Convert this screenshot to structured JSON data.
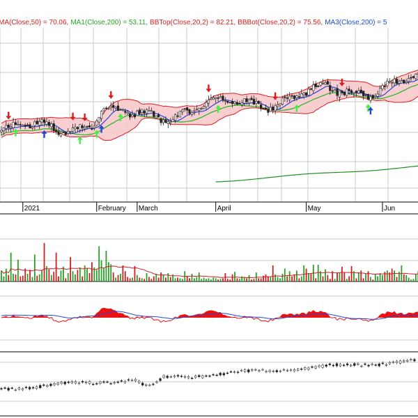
{
  "colors": {
    "up": "#2aa02a",
    "down": "#cc1f1f",
    "ma_short": "#1f49d6",
    "ma_mid": "#22b322",
    "ma_long": "#1f8f1f",
    "band_fill": "#f7c9cc",
    "band_line": "#d81e1e",
    "arrow_sell": "#d81e1e",
    "arrow_buy_green": "#44ee44",
    "arrow_buy_blue": "#2247d6",
    "grid": "#c9c9c9",
    "panel_border": "#000000"
  },
  "legend": [
    {
      "text": "MA(Close,50) = 70.06,",
      "color": "#d81e1e"
    },
    {
      "text": "MA1(Close,200) = 53.11,",
      "color": "#22a822"
    },
    {
      "text": "BBTop(Close,20,2) = 82.21,",
      "color": "#d81e1e"
    },
    {
      "text": "BBBot(Close,20,2) = 75.56,",
      "color": "#d81e1e"
    },
    {
      "text": "MA3(Close,200) = 5",
      "color": "#1f49d6"
    }
  ],
  "x_axis": {
    "labels": [
      "2021",
      "February",
      "March",
      "April",
      "May",
      "Jun"
    ],
    "label_sessions": [
      9,
      40,
      57,
      90,
      128,
      160
    ]
  },
  "chart_data": [
    {
      "type": "candlestick",
      "panel": "price",
      "session_count": 176,
      "close_start": 77.5,
      "close_end": 90.5,
      "ylim": [
        60,
        104
      ],
      "grid": true,
      "series": [
        {
          "name": "Bollinger Bands (20,2)",
          "kind": "band"
        },
        {
          "name": "MA(Close,50)",
          "kind": "line",
          "color": "#1f49d6"
        },
        {
          "name": "MA1(Close,200)",
          "kind": "line",
          "color": "#22b322"
        },
        {
          "name": "MA3(Close,200)",
          "kind": "line",
          "color": "#1f8f1f",
          "start_session": 90
        }
      ],
      "sell_signals": [
        3,
        30,
        35,
        46,
        87,
        115,
        143
      ],
      "buy_signals_green": [
        6,
        33,
        40,
        50,
        91,
        124,
        154
      ],
      "buy_signals_blue": [
        18,
        42,
        155
      ]
    },
    {
      "type": "bar",
      "panel": "volume",
      "ylim": [
        0,
        100
      ],
      "values": [
        17,
        8,
        20,
        10,
        45,
        12,
        11,
        34,
        8,
        9,
        20,
        12,
        18,
        7,
        42,
        9,
        11,
        18,
        60,
        24,
        19,
        10,
        15,
        45,
        8,
        17,
        23,
        5,
        13,
        38,
        16,
        11,
        18,
        21,
        8,
        25,
        20,
        13,
        30,
        22,
        18,
        55,
        33,
        21,
        48,
        30,
        27,
        14,
        6,
        10,
        12,
        25,
        16,
        7,
        5,
        6,
        24,
        10,
        6,
        5,
        4,
        13,
        7,
        4,
        8,
        12,
        6,
        14,
        10,
        6,
        13,
        7,
        11,
        5,
        6,
        5,
        4,
        16,
        8,
        5,
        12,
        5,
        7,
        14,
        4,
        6,
        4,
        5,
        3,
        6,
        5,
        3,
        4,
        5,
        13,
        4,
        3,
        11,
        15,
        5,
        4,
        8,
        6,
        5,
        10,
        3,
        4,
        14,
        5,
        5,
        9,
        11,
        8,
        7,
        25,
        11,
        7,
        5,
        12,
        20,
        8,
        16,
        8,
        11,
        17,
        5,
        8,
        25,
        20,
        13,
        12,
        26,
        5,
        26,
        16,
        8,
        19,
        10,
        4,
        16,
        4,
        14,
        13,
        23,
        14,
        4,
        8,
        24,
        16,
        5,
        14,
        17,
        5,
        12,
        16,
        7,
        3,
        11,
        8,
        13,
        10,
        15,
        17,
        14,
        20,
        17,
        7,
        15,
        25,
        11,
        10,
        6,
        3,
        4,
        12,
        16
      ],
      "moving_average": true
    },
    {
      "type": "area",
      "panel": "oscillator",
      "series": [
        {
          "name": "histogram",
          "color": "#ee1111"
        },
        {
          "name": "signal",
          "color": "#1f49d6"
        }
      ]
    },
    {
      "type": "candlestick",
      "panel": "long_term",
      "series": [
        {
          "name": "weekly price"
        }
      ]
    }
  ]
}
